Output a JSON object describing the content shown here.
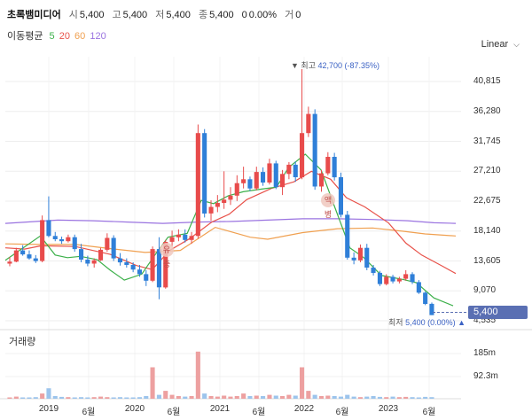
{
  "header": {
    "name": "초록뱀미디어",
    "open_label": "시",
    "open": "5,400",
    "high_label": "고",
    "high": "5,400",
    "low_label": "저",
    "low": "5,400",
    "close_label": "종",
    "close": "5,400",
    "change": "0",
    "change_pct": "0.00%",
    "volume_label": "거",
    "volume": "0"
  },
  "moving_average": {
    "label": "이동평균",
    "periods": [
      "5",
      "20",
      "60",
      "120"
    ],
    "colors": [
      "#3cb04a",
      "#e8524a",
      "#f0a050",
      "#9a73e0"
    ]
  },
  "scale_button": {
    "label": "Linear"
  },
  "annotations": {
    "high_label": "▼ 최고",
    "high_value": "42,700 (-87.35%)",
    "low_label": "최저",
    "low_value": "5,400 (0.00%)",
    "low_marker": "▲"
  },
  "current_price": "5,400",
  "events": [
    {
      "label": "유증"
    },
    {
      "label": "액병"
    }
  ],
  "volume_panel": {
    "title": "거래량"
  },
  "chart_data": {
    "type": "candlestick",
    "y_ticks": [
      "40,815",
      "36,280",
      "31,745",
      "27,210",
      "22,675",
      "18,140",
      "13,605",
      "9,070",
      "4,535"
    ],
    "volume_ticks": [
      "185m",
      "92.3m"
    ],
    "x_ticks": [
      "2019",
      "6월",
      "2020",
      "6월",
      "2021",
      "6월",
      "2022",
      "6월",
      "2023",
      "6월"
    ],
    "ylim": [
      4535,
      40815
    ],
    "high": 42700,
    "low": 5400,
    "last": 5400,
    "colors": {
      "up": "#e84b4b",
      "down": "#2f7fd8"
    },
    "candles": [
      [
        13200,
        14200,
        12800,
        13500
      ],
      [
        13500,
        15600,
        13400,
        15200
      ],
      [
        15200,
        16000,
        14400,
        14600
      ],
      [
        14600,
        15200,
        13800,
        14000
      ],
      [
        14000,
        14500,
        13300,
        13600
      ],
      [
        13600,
        20500,
        13400,
        19800
      ],
      [
        19800,
        23400,
        17200,
        17400
      ],
      [
        17400,
        18000,
        16600,
        16900
      ],
      [
        16900,
        17300,
        16200,
        16600
      ],
      [
        16600,
        17600,
        16400,
        17200
      ],
      [
        17200,
        17600,
        15000,
        15400
      ],
      [
        15400,
        16200,
        13400,
        13800
      ],
      [
        13800,
        14400,
        12800,
        13200
      ],
      [
        13200,
        14000,
        12600,
        13700
      ],
      [
        13700,
        15600,
        13600,
        15300
      ],
      [
        15300,
        17800,
        15000,
        17100
      ],
      [
        17100,
        17500,
        13600,
        14000
      ],
      [
        14000,
        14800,
        12900,
        13400
      ],
      [
        13400,
        14000,
        12600,
        13000
      ],
      [
        13000,
        13400,
        11900,
        12300
      ],
      [
        12300,
        13000,
        11200,
        11600
      ],
      [
        11600,
        12200,
        9800,
        10600
      ],
      [
        10600,
        15800,
        10400,
        15400
      ],
      [
        15400,
        17200,
        7800,
        9600
      ],
      [
        9600,
        16800,
        9400,
        16500
      ],
      [
        16500,
        18200,
        15800,
        17200
      ],
      [
        17200,
        18400,
        16600,
        17600
      ],
      [
        17600,
        18400,
        16400,
        16800
      ],
      [
        16800,
        18000,
        16200,
        17400
      ],
      [
        17400,
        34300,
        17000,
        33000
      ],
      [
        33000,
        33600,
        20200,
        20800
      ],
      [
        20800,
        22800,
        19700,
        21800
      ],
      [
        21800,
        23600,
        21000,
        22400
      ],
      [
        22400,
        27200,
        21500,
        22900
      ],
      [
        22900,
        24800,
        22100,
        23500
      ],
      [
        23500,
        26600,
        22700,
        25400
      ],
      [
        25400,
        27900,
        24600,
        26000
      ],
      [
        26000,
        26400,
        24200,
        24600
      ],
      [
        24600,
        27900,
        24300,
        27100
      ],
      [
        27100,
        27800,
        25000,
        25500
      ],
      [
        25500,
        29100,
        25200,
        28400
      ],
      [
        28400,
        28800,
        24500,
        24800
      ],
      [
        24800,
        27400,
        23600,
        26800
      ],
      [
        26800,
        28600,
        26000,
        28200
      ],
      [
        28200,
        28700,
        25600,
        26300
      ],
      [
        26300,
        42700,
        26000,
        33000
      ],
      [
        33000,
        37000,
        32400,
        35900
      ],
      [
        35900,
        36600,
        24400,
        24900
      ],
      [
        24900,
        27400,
        24100,
        26900
      ],
      [
        26900,
        30100,
        26600,
        29400
      ],
      [
        29400,
        30000,
        25800,
        26300
      ],
      [
        26300,
        27000,
        20200,
        20600
      ],
      [
        20600,
        21200,
        13800,
        14100
      ],
      [
        14100,
        14900,
        13100,
        13700
      ],
      [
        13700,
        16100,
        13400,
        15600
      ],
      [
        15600,
        16200,
        12200,
        12600
      ],
      [
        12600,
        13000,
        11400,
        11800
      ],
      [
        11800,
        12100,
        9800,
        10100
      ],
      [
        10100,
        11600,
        9900,
        11200
      ],
      [
        11200,
        11500,
        10200,
        10500
      ],
      [
        10500,
        11200,
        10200,
        10900
      ],
      [
        10900,
        12200,
        10600,
        11600
      ],
      [
        11600,
        11900,
        10100,
        10400
      ],
      [
        10400,
        10700,
        8600,
        8800
      ],
      [
        8800,
        9000,
        6900,
        7100
      ],
      [
        7100,
        7300,
        5400,
        5400
      ]
    ],
    "volume": [
      0.5,
      0.8,
      0.5,
      0.5,
      0.6,
      2.0,
      4.0,
      1.0,
      0.7,
      0.6,
      0.5,
      0.6,
      0.5,
      0.6,
      0.8,
      0.6,
      0.5,
      0.6,
      0.5,
      0.5,
      0.6,
      1.0,
      12.0,
      1.5,
      3.0,
      1.5,
      1.0,
      0.8,
      1.0,
      18.0,
      2.0,
      1.0,
      0.8,
      1.2,
      0.8,
      1.0,
      2.0,
      1.0,
      1.2,
      1.0,
      1.5,
      1.2,
      1.0,
      1.5,
      1.2,
      12.0,
      3.0,
      1.5,
      1.0,
      1.2,
      1.0,
      0.8,
      1.5,
      0.8,
      0.6,
      0.8,
      1.0,
      0.7,
      0.6,
      0.8,
      0.6,
      0.7,
      0.6,
      0.5,
      0.7,
      0.6
    ],
    "ma_lines": {
      "ma5": [
        [
          0,
          13700
        ],
        [
          40,
          17400
        ],
        [
          57,
          14500
        ],
        [
          71,
          14100
        ],
        [
          86,
          14300
        ],
        [
          105,
          13800
        ],
        [
          120,
          12200
        ],
        [
          136,
          10700
        ],
        [
          156,
          11600
        ],
        [
          171,
          14500
        ],
        [
          186,
          17200
        ],
        [
          208,
          17800
        ],
        [
          224,
          22800
        ],
        [
          238,
          22300
        ],
        [
          255,
          23500
        ],
        [
          272,
          24100
        ],
        [
          293,
          24500
        ],
        [
          310,
          24800
        ],
        [
          324,
          27800
        ],
        [
          343,
          29800
        ],
        [
          361,
          27400
        ],
        [
          376,
          22000
        ],
        [
          394,
          15600
        ],
        [
          410,
          14100
        ],
        [
          430,
          11400
        ],
        [
          455,
          10800
        ],
        [
          470,
          10300
        ],
        [
          490,
          8000
        ],
        [
          512,
          6800
        ]
      ],
      "ma20": [
        [
          0,
          15600
        ],
        [
          22,
          15400
        ],
        [
          41,
          15900
        ],
        [
          80,
          15800
        ],
        [
          120,
          14600
        ],
        [
          150,
          12900
        ],
        [
          168,
          12300
        ],
        [
          188,
          15200
        ],
        [
          211,
          17000
        ],
        [
          236,
          19500
        ],
        [
          256,
          20700
        ],
        [
          276,
          22900
        ],
        [
          304,
          24600
        ],
        [
          330,
          25600
        ],
        [
          350,
          27200
        ],
        [
          372,
          26000
        ],
        [
          390,
          23200
        ],
        [
          411,
          21800
        ],
        [
          438,
          19400
        ],
        [
          458,
          16300
        ],
        [
          476,
          14500
        ],
        [
          500,
          12800
        ],
        [
          515,
          11700
        ]
      ],
      "ma60": [
        [
          0,
          16200
        ],
        [
          38,
          16100
        ],
        [
          80,
          16100
        ],
        [
          118,
          15500
        ],
        [
          160,
          14900
        ],
        [
          200,
          15200
        ],
        [
          240,
          18700
        ],
        [
          280,
          17200
        ],
        [
          300,
          16900
        ],
        [
          340,
          17900
        ],
        [
          380,
          18500
        ],
        [
          420,
          18600
        ],
        [
          455,
          18100
        ],
        [
          480,
          17700
        ],
        [
          515,
          17400
        ]
      ],
      "ma120": [
        [
          0,
          19300
        ],
        [
          60,
          19800
        ],
        [
          100,
          19700
        ],
        [
          140,
          19500
        ],
        [
          180,
          19300
        ],
        [
          220,
          19500
        ],
        [
          260,
          19600
        ],
        [
          300,
          19800
        ],
        [
          340,
          20000
        ],
        [
          380,
          20000
        ],
        [
          420,
          19900
        ],
        [
          460,
          19700
        ],
        [
          490,
          19400
        ],
        [
          515,
          19300
        ]
      ]
    }
  }
}
